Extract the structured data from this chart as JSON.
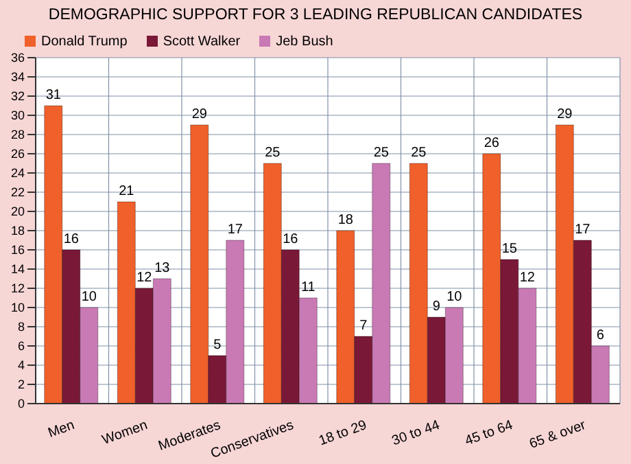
{
  "chart_data": {
    "type": "bar",
    "title": "DEMOGRAPHIC SUPPORT FOR 3 LEADING REPUBLICAN CANDIDATES",
    "categories": [
      "Men",
      "Women",
      "Moderates",
      "Conservatives",
      "18 to 29",
      "30 to 44",
      "45 to 64",
      "65 & over"
    ],
    "series": [
      {
        "name": "Donald Trump",
        "color": "#f0602a",
        "values": [
          31,
          21,
          29,
          25,
          18,
          25,
          26,
          29
        ]
      },
      {
        "name": "Scott Walker",
        "color": "#7a1838",
        "values": [
          16,
          12,
          5,
          16,
          7,
          9,
          15,
          17
        ]
      },
      {
        "name": "Jeb Bush",
        "color": "#c97ab4",
        "values": [
          10,
          13,
          17,
          11,
          25,
          10,
          12,
          6
        ]
      }
    ],
    "ylim": [
      0,
      36
    ],
    "yticks": [
      0,
      2,
      4,
      6,
      8,
      10,
      12,
      14,
      16,
      18,
      20,
      22,
      24,
      26,
      28,
      30,
      32,
      34,
      36
    ],
    "grid": true,
    "legend": "top left",
    "data_labels": true
  }
}
